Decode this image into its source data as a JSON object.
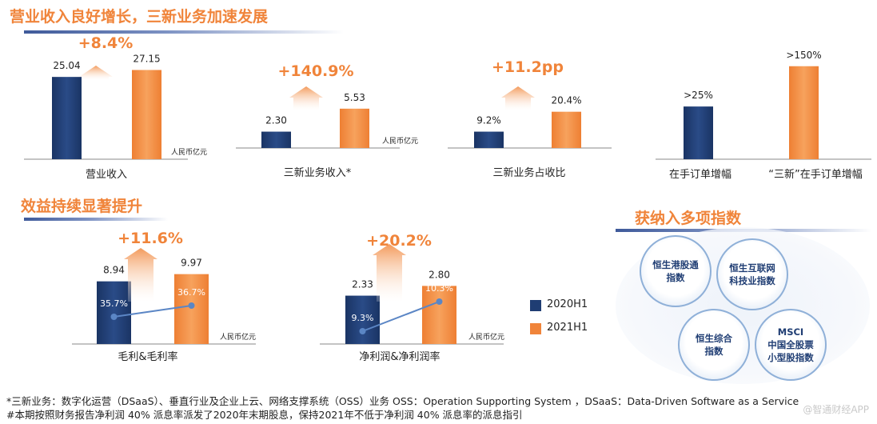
{
  "titles": {
    "revenue": "营业收入良好增长，三新业务加速发展",
    "efficiency": "效益持续显著提升",
    "index": "获纳入多项指数"
  },
  "colors": {
    "s2020": "#1f3d73",
    "s2021": "#f0843a",
    "accent": "#f0843a",
    "rate_line": "#5b86c5"
  },
  "legend": [
    "2020H1",
    "2021H1"
  ],
  "unit_label": "人民币亿元",
  "index_circles": [
    "恒生港股通\n指数",
    "恒生互联网\n科技业指数",
    "恒生综合\n指数",
    "MSCI\n中国全股票\n小型股指数"
  ],
  "footnotes": [
    "*三新业务：数字化运营（DSaaS）、垂直行业及企业上云、网络支撑系统（OSS）业务    OSS：Operation Supporting System ，DSaaS：Data-Driven Software as a Service",
    "#本期按照财务报告净利润 40% 派息率派发了2020年末期股息，保持2021年不低于净利润 40% 派息率的派息指引"
  ],
  "watermark": "@智通财经APP",
  "chart_data": [
    {
      "type": "bar",
      "title": "营业收入",
      "categories": [
        "2020H1",
        "2021H1"
      ],
      "values": [
        25.04,
        27.15
      ],
      "labels": [
        "25.04",
        "27.15"
      ],
      "growth": "+8.4%",
      "unit": "人民币亿元",
      "ylim": [
        0,
        28
      ]
    },
    {
      "type": "bar",
      "title": "三新业务收入*",
      "categories": [
        "2020H1",
        "2021H1"
      ],
      "values": [
        2.3,
        5.53
      ],
      "labels": [
        "2.30",
        "5.53"
      ],
      "growth": "+140.9%",
      "unit": "人民币亿元",
      "ylim": [
        0,
        9
      ]
    },
    {
      "type": "bar",
      "title": "三新业务占收比",
      "categories": [
        "2020H1",
        "2021H1"
      ],
      "values": [
        9.2,
        20.4
      ],
      "labels": [
        "9.2%",
        "20.4%"
      ],
      "growth": "+11.2pp",
      "unit": "",
      "ylim": [
        0,
        36
      ]
    },
    {
      "type": "bar",
      "title": "在手订单增幅",
      "categories": [
        "在手订单增幅",
        "“三新”在手订单增幅"
      ],
      "values": [
        25,
        150
      ],
      "labels": [
        ">25%",
        ">150%"
      ],
      "growth": "",
      "unit": "",
      "ylim": [
        0,
        160
      ],
      "bar_heights_data": [
        85,
        150
      ]
    },
    {
      "type": "bar",
      "title": "毛利&毛利率",
      "categories": [
        "2020H1",
        "2021H1"
      ],
      "values": [
        8.94,
        9.97
      ],
      "labels": [
        "8.94",
        "9.97"
      ],
      "growth": "+11.6%",
      "unit": "人民币亿元",
      "ylim": [
        0,
        10.5
      ],
      "rate": {
        "values": [
          35.7,
          36.7
        ],
        "labels": [
          "35.7%",
          "36.7%"
        ]
      }
    },
    {
      "type": "bar",
      "title": "净利润&净利润率",
      "categories": [
        "2020H1",
        "2021H1"
      ],
      "values": [
        2.33,
        2.8
      ],
      "labels": [
        "2.33",
        "2.80"
      ],
      "growth": "+20.2%",
      "unit": "人民币亿元",
      "ylim": [
        0,
        3.2
      ],
      "rate": {
        "values": [
          9.3,
          10.3
        ],
        "labels": [
          "9.3%",
          "10.3%"
        ]
      }
    }
  ]
}
